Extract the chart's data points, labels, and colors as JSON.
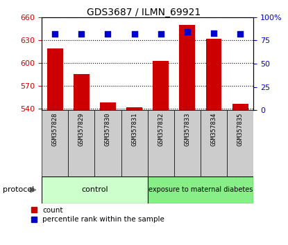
{
  "title": "GDS3687 / ILMN_69921",
  "samples": [
    "GSM357828",
    "GSM357829",
    "GSM357830",
    "GSM357831",
    "GSM357832",
    "GSM357833",
    "GSM357834",
    "GSM357835"
  ],
  "counts": [
    619,
    585,
    548,
    542,
    603,
    650,
    632,
    546
  ],
  "percentile_ranks": [
    82,
    82,
    82,
    82,
    82,
    84,
    83,
    82
  ],
  "ylim_left": [
    538,
    660
  ],
  "ylim_right": [
    0,
    100
  ],
  "yticks_left": [
    540,
    570,
    600,
    630,
    660
  ],
  "yticks_right": [
    0,
    25,
    50,
    75,
    100
  ],
  "yticklabels_right": [
    "0",
    "25",
    "50",
    "75",
    "100%"
  ],
  "bar_color": "#cc0000",
  "dot_color": "#0000cc",
  "left_tick_color": "#cc0000",
  "right_tick_color": "#0000cc",
  "base_value": 538,
  "bar_width": 0.6,
  "dot_size": 40,
  "control_color": "#ccffcc",
  "diabetes_color": "#88ee88",
  "xtick_box_color": "#cccccc",
  "fig_width": 4.15,
  "fig_height": 3.54,
  "title_fontsize": 10,
  "tick_fontsize": 8,
  "label_fontsize": 8
}
